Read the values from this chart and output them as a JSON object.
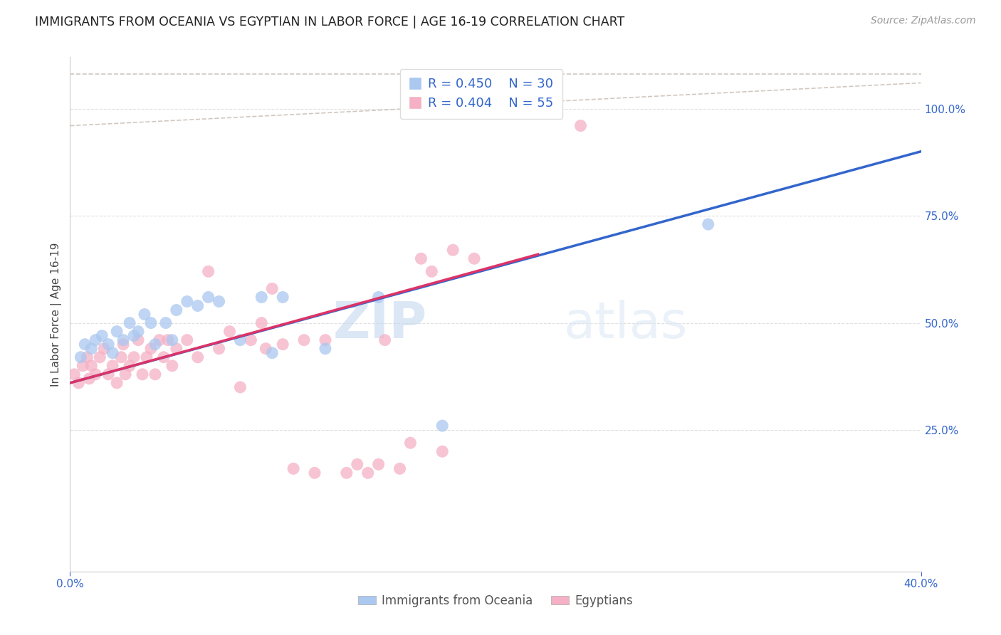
{
  "title": "IMMIGRANTS FROM OCEANIA VS EGYPTIAN IN LABOR FORCE | AGE 16-19 CORRELATION CHART",
  "source": "Source: ZipAtlas.com",
  "ylabel": "In Labor Force | Age 16-19",
  "xlim": [
    0.0,
    0.4
  ],
  "ylim": [
    -0.08,
    1.12
  ],
  "xticks": [
    0.0,
    0.4
  ],
  "ytick_positions": [
    0.25,
    0.5,
    0.75,
    1.0
  ],
  "ytick_labels": [
    "25.0%",
    "50.0%",
    "75.0%",
    "100.0%"
  ],
  "grid_color": "#e0e0e0",
  "background_color": "#ffffff",
  "blue_color": "#aac8f0",
  "pink_color": "#f5b0c5",
  "blue_line_color": "#3366cc",
  "pink_line_color": "#dd3366",
  "diag_line_color": "#d0c8c0",
  "blue_scatter_x": [
    0.005,
    0.007,
    0.01,
    0.012,
    0.015,
    0.018,
    0.02,
    0.022,
    0.025,
    0.028,
    0.03,
    0.032,
    0.035,
    0.038,
    0.04,
    0.045,
    0.048,
    0.05,
    0.055,
    0.06,
    0.065,
    0.07,
    0.08,
    0.09,
    0.095,
    0.1,
    0.12,
    0.145,
    0.175,
    0.3
  ],
  "blue_scatter_y": [
    0.42,
    0.45,
    0.44,
    0.46,
    0.47,
    0.45,
    0.43,
    0.48,
    0.46,
    0.5,
    0.47,
    0.48,
    0.52,
    0.5,
    0.45,
    0.5,
    0.46,
    0.53,
    0.55,
    0.54,
    0.56,
    0.55,
    0.46,
    0.56,
    0.43,
    0.56,
    0.44,
    0.56,
    0.26,
    0.73
  ],
  "pink_scatter_x": [
    0.002,
    0.004,
    0.006,
    0.008,
    0.009,
    0.01,
    0.012,
    0.014,
    0.016,
    0.018,
    0.02,
    0.022,
    0.024,
    0.025,
    0.026,
    0.028,
    0.03,
    0.032,
    0.034,
    0.036,
    0.038,
    0.04,
    0.042,
    0.044,
    0.046,
    0.048,
    0.05,
    0.055,
    0.06,
    0.065,
    0.07,
    0.075,
    0.08,
    0.085,
    0.09,
    0.092,
    0.095,
    0.1,
    0.105,
    0.11,
    0.115,
    0.12,
    0.13,
    0.135,
    0.14,
    0.145,
    0.148,
    0.155,
    0.16,
    0.165,
    0.17,
    0.175,
    0.18,
    0.19,
    0.24
  ],
  "pink_scatter_y": [
    0.38,
    0.36,
    0.4,
    0.42,
    0.37,
    0.4,
    0.38,
    0.42,
    0.44,
    0.38,
    0.4,
    0.36,
    0.42,
    0.45,
    0.38,
    0.4,
    0.42,
    0.46,
    0.38,
    0.42,
    0.44,
    0.38,
    0.46,
    0.42,
    0.46,
    0.4,
    0.44,
    0.46,
    0.42,
    0.62,
    0.44,
    0.48,
    0.35,
    0.46,
    0.5,
    0.44,
    0.58,
    0.45,
    0.16,
    0.46,
    0.15,
    0.46,
    0.15,
    0.17,
    0.15,
    0.17,
    0.46,
    0.16,
    0.22,
    0.65,
    0.62,
    0.2,
    0.67,
    0.65,
    0.96
  ],
  "blue_line_x": [
    0.0,
    0.4
  ],
  "blue_line_y": [
    0.36,
    0.9
  ],
  "pink_line_x": [
    0.0,
    0.22
  ],
  "pink_line_y": [
    0.36,
    0.66
  ],
  "diag_line_x": [
    0.0,
    0.4
  ],
  "diag_line_y": [
    1.05,
    1.05
  ],
  "legend_R_blue": "R = 0.450",
  "legend_N_blue": "N = 30",
  "legend_R_pink": "R = 0.404",
  "legend_N_pink": "N = 55",
  "legend_label_blue": "Immigrants from Oceania",
  "legend_label_pink": "Egyptians"
}
